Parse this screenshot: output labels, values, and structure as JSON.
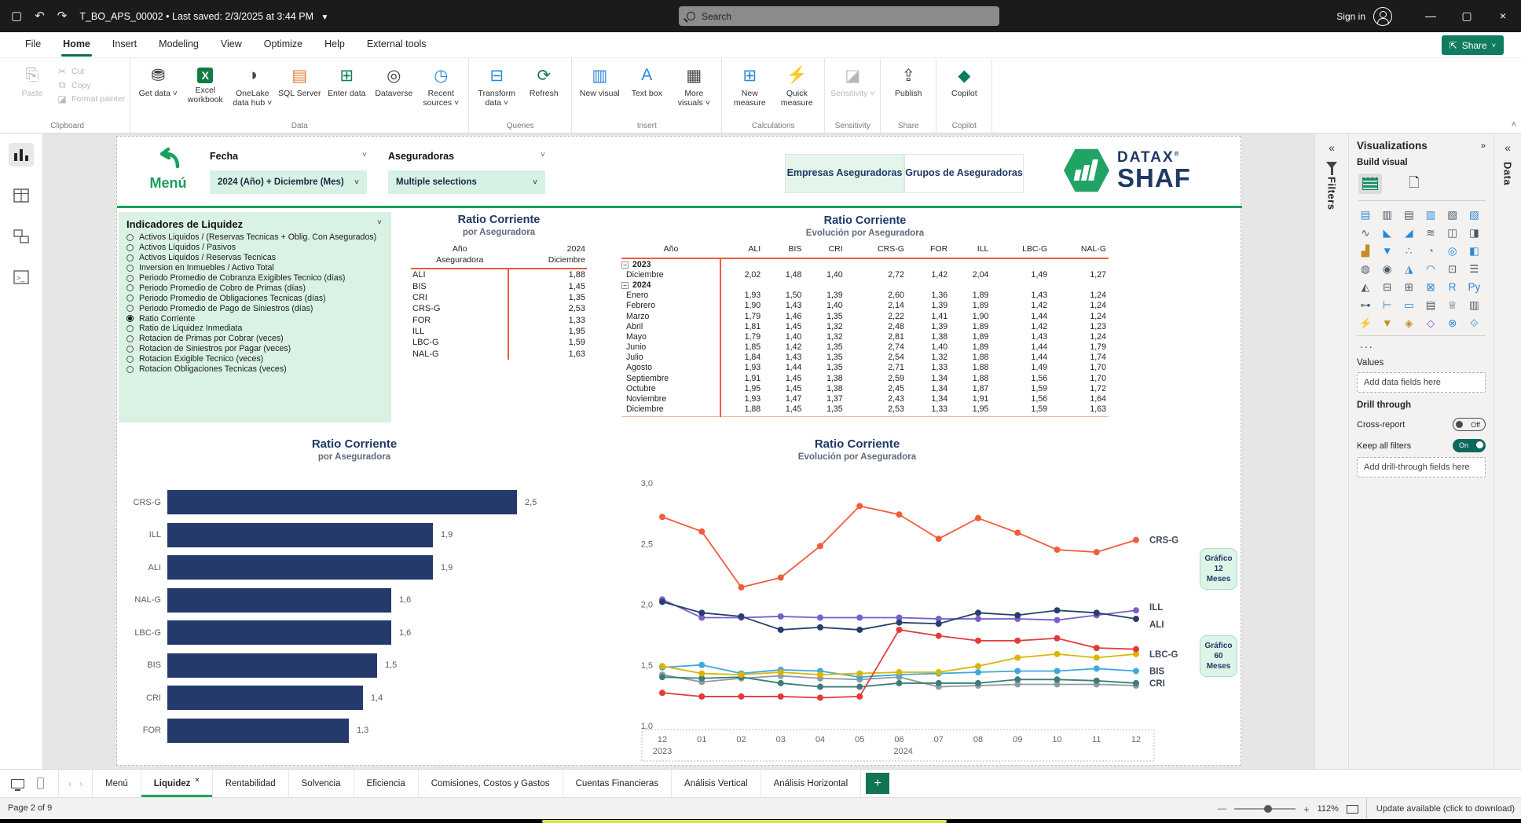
{
  "titlebar": {
    "filename": "T_BO_APS_00002",
    "saved": "Last saved: 2/3/2025 at 3:44 PM",
    "search_placeholder": "Search",
    "sign_in": "Sign in"
  },
  "menubar": {
    "items": [
      "File",
      "Home",
      "Insert",
      "Modeling",
      "View",
      "Optimize",
      "Help",
      "External tools"
    ],
    "active": "Home",
    "share_label": "Share"
  },
  "ribbon": {
    "groups": [
      {
        "label": "Clipboard",
        "type": "clipboard",
        "paste": "Paste",
        "small_items": [
          "Cut",
          "Copy",
          "Format painter"
        ]
      },
      {
        "label": "Data",
        "items": [
          {
            "label": "Get data",
            "caret": true,
            "icon": "database-icon",
            "glyph": "⛃",
            "cls": ""
          },
          {
            "label": "Excel workbook",
            "icon": "excel-icon",
            "glyph": "X",
            "cls": "green-x"
          },
          {
            "label": "OneLake data hub",
            "caret": true,
            "icon": "onelake-icon",
            "glyph": "◑",
            "cls": ""
          },
          {
            "label": "SQL Server",
            "icon": "sql-server-icon",
            "glyph": "▤",
            "cls": "orange"
          },
          {
            "label": "Enter data",
            "icon": "enter-data-icon",
            "glyph": "⊞",
            "cls": "teal"
          },
          {
            "label": "Dataverse",
            "icon": "dataverse-icon",
            "glyph": "◎",
            "cls": ""
          },
          {
            "label": "Recent sources",
            "caret": true,
            "icon": "recent-sources-icon",
            "glyph": "◷",
            "cls": "blue"
          }
        ]
      },
      {
        "label": "Queries",
        "items": [
          {
            "label": "Transform data",
            "caret": true,
            "icon": "transform-data-icon",
            "glyph": "⊟",
            "cls": "blue"
          },
          {
            "label": "Refresh",
            "icon": "refresh-icon",
            "glyph": "⟳",
            "cls": "teal"
          }
        ]
      },
      {
        "label": "Insert",
        "items": [
          {
            "label": "New visual",
            "icon": "new-visual-icon",
            "glyph": "▥",
            "cls": "blue"
          },
          {
            "label": "Text box",
            "icon": "text-box-icon",
            "glyph": "A",
            "cls": "blue"
          },
          {
            "label": "More visuals",
            "caret": true,
            "icon": "more-visuals-icon",
            "glyph": "▦",
            "cls": ""
          }
        ]
      },
      {
        "label": "Calculations",
        "items": [
          {
            "label": "New measure",
            "icon": "new-measure-icon",
            "glyph": "⊞",
            "cls": "blue"
          },
          {
            "label": "Quick measure",
            "icon": "quick-measure-icon",
            "glyph": "⚡",
            "cls": "orange"
          }
        ]
      },
      {
        "label": "Sensitivity",
        "items": [
          {
            "label": "Sensitivity",
            "caret": true,
            "icon": "sensitivity-icon",
            "glyph": "◪",
            "cls": "",
            "disabled": true
          }
        ]
      },
      {
        "label": "Share",
        "items": [
          {
            "label": "Publish",
            "icon": "publish-icon",
            "glyph": "⇪",
            "cls": ""
          }
        ]
      },
      {
        "label": "Copilot",
        "items": [
          {
            "label": "Copilot",
            "icon": "copilot-icon",
            "glyph": "◆",
            "cls": "teal"
          }
        ]
      }
    ],
    "collapse_icon": "˄"
  },
  "report": {
    "menu_label": "Menú",
    "fecha": {
      "label": "Fecha",
      "value": "2024 (Año) + Diciembre (Mes)"
    },
    "aseguradoras": {
      "label": "Aseguradoras",
      "value": "Multiple selections"
    },
    "toggle_buttons": [
      {
        "label": "Empresas Aseguradoras",
        "active": true
      },
      {
        "label": "Grupos de Aseguradoras",
        "active": false
      }
    ],
    "logo": {
      "brand": "DATAX",
      "reg": "®",
      "product": "SHAF"
    },
    "indicator_list": {
      "title": "Indicadores de Liquidez",
      "selected_index": 8,
      "items": [
        "Activos Liquidos / (Reservas Tecnicas + Oblig. Con Asegurados)",
        "Activos Líquidos / Pasivos",
        "Activos Liquidos / Reservas Tecnicas",
        "Inversion en Inmuebles / Activo Total",
        "Periodo Promedio de Cobranza Exigibles Tecnico (días)",
        "Periodo Promedio de Cobro de Primas (días)",
        "Periodo Promedio de Obligaciones Tecnicas (días)",
        "Periodo Promedio de Pago de Siniestros (días)",
        "Ratio Corriente",
        "Ratio de Liquidez Inmediata",
        "Rotacion de Primas por Cobrar (veces)",
        "Rotacion de Siniestros por Pagar (veces)",
        "Rotacion Exigible Tecnico (veces)",
        "Rotacion Obligaciones Tecnicas (veces)"
      ]
    },
    "table_por_aseguradora": {
      "title": "Ratio Corriente",
      "subtitle": "por Aseguradora",
      "header": {
        "col1_line1": "Año",
        "col1_line2": "Aseguradora",
        "col2_line1": "2024",
        "col2_line2": "Diciembre"
      },
      "rows": [
        [
          "ALI",
          "1,88"
        ],
        [
          "BIS",
          "1,45"
        ],
        [
          "CRI",
          "1,35"
        ],
        [
          "CRS-G",
          "2,53"
        ],
        [
          "FOR",
          "1,33"
        ],
        [
          "ILL",
          "1,95"
        ],
        [
          "LBC-G",
          "1,59"
        ],
        [
          "NAL-G",
          "1,63"
        ]
      ]
    },
    "matrix": {
      "title": "Ratio Corriente",
      "subtitle": "Evolución por Aseguradora",
      "columns": [
        "Año",
        "ALI",
        "BIS",
        "CRI",
        "CRS-G",
        "FOR",
        "ILL",
        "LBC-G",
        "NAL-G"
      ],
      "rows": [
        {
          "label": "2023",
          "year": true
        },
        {
          "label": "Diciembre",
          "values": [
            "2,02",
            "1,48",
            "1,40",
            "2,72",
            "1,42",
            "2,04",
            "1,49",
            "1,27"
          ]
        },
        {
          "label": "2024",
          "year": true
        },
        {
          "label": "Enero",
          "values": [
            "1,93",
            "1,50",
            "1,39",
            "2,60",
            "1,36",
            "1,89",
            "1,43",
            "1,24"
          ]
        },
        {
          "label": "Febrero",
          "values": [
            "1,90",
            "1,43",
            "1,40",
            "2,14",
            "1,39",
            "1,89",
            "1,42",
            "1,24"
          ]
        },
        {
          "label": "Marzo",
          "values": [
            "1,79",
            "1,46",
            "1,35",
            "2,22",
            "1,41",
            "1,90",
            "1,44",
            "1,24"
          ]
        },
        {
          "label": "Abril",
          "values": [
            "1,81",
            "1,45",
            "1,32",
            "2,48",
            "1,39",
            "1,89",
            "1,42",
            "1,23"
          ]
        },
        {
          "label": "Mayo",
          "values": [
            "1,79",
            "1,40",
            "1,32",
            "2,81",
            "1,38",
            "1,89",
            "1,43",
            "1,24"
          ]
        },
        {
          "label": "Junio",
          "values": [
            "1,85",
            "1,42",
            "1,35",
            "2,74",
            "1,40",
            "1,89",
            "1,44",
            "1,79"
          ]
        },
        {
          "label": "Julio",
          "values": [
            "1,84",
            "1,43",
            "1,35",
            "2,54",
            "1,32",
            "1,88",
            "1,44",
            "1,74"
          ]
        },
        {
          "label": "Agosto",
          "values": [
            "1,93",
            "1,44",
            "1,35",
            "2,71",
            "1,33",
            "1,88",
            "1,49",
            "1,70"
          ]
        },
        {
          "label": "Septiembre",
          "values": [
            "1,91",
            "1,45",
            "1,38",
            "2,59",
            "1,34",
            "1,88",
            "1,56",
            "1,70"
          ]
        },
        {
          "label": "Octubre",
          "values": [
            "1,95",
            "1,45",
            "1,38",
            "2,45",
            "1,34",
            "1,87",
            "1,59",
            "1,72"
          ]
        },
        {
          "label": "Noviembre",
          "values": [
            "1,93",
            "1,47",
            "1,37",
            "2,43",
            "1,34",
            "1,91",
            "1,56",
            "1,64"
          ]
        },
        {
          "label": "Diciembre",
          "values": [
            "1,88",
            "1,45",
            "1,35",
            "2,53",
            "1,33",
            "1,95",
            "1,59",
            "1,63"
          ]
        }
      ]
    },
    "grafico_buttons": [
      {
        "lines": [
          "Gráfico",
          "12",
          "Meses"
        ]
      },
      {
        "lines": [
          "Gráfico",
          "60",
          "Meses"
        ]
      }
    ]
  },
  "chart_data": [
    {
      "type": "bar",
      "orientation": "horizontal",
      "title": "Ratio Corriente",
      "subtitle": "por Aseguradora",
      "categories": [
        "CRS-G",
        "ILL",
        "ALI",
        "NAL-G",
        "LBC-G",
        "BIS",
        "CRI",
        "FOR"
      ],
      "values": [
        2.5,
        1.9,
        1.9,
        1.6,
        1.6,
        1.5,
        1.4,
        1.3
      ],
      "value_labels": [
        "2,5",
        "1,9",
        "1,9",
        "1,6",
        "1,6",
        "1,5",
        "1,4",
        "1,3"
      ],
      "bar_color": "#243a6b",
      "xlim": [
        0,
        2.7
      ],
      "grid": false
    },
    {
      "type": "line",
      "title": "Ratio Corriente",
      "subtitle": "Evolución por Aseguradora",
      "x_labels": [
        "12",
        "01",
        "02",
        "03",
        "04",
        "05",
        "06",
        "07",
        "08",
        "09",
        "10",
        "11",
        "12"
      ],
      "x_year_start": "2023",
      "x_year_mid": "2024",
      "ylim": [
        1.0,
        3.0
      ],
      "y_tick_labels": [
        "3,0",
        "2,5",
        "2,0",
        "1,5",
        "1,0"
      ],
      "grid": false,
      "legend_position": "right-end-labels",
      "series": [
        {
          "name": "FOR",
          "color": "#8e9ca3",
          "label_visible": false,
          "values": [
            1.42,
            1.36,
            1.39,
            1.41,
            1.39,
            1.38,
            1.4,
            1.32,
            1.33,
            1.34,
            1.34,
            1.34,
            1.33
          ]
        },
        {
          "name": "CRI",
          "color": "#3c7e76",
          "label_visible": true,
          "values": [
            1.4,
            1.39,
            1.4,
            1.35,
            1.32,
            1.32,
            1.35,
            1.35,
            1.35,
            1.38,
            1.38,
            1.37,
            1.35
          ]
        },
        {
          "name": "BIS",
          "color": "#3fa8dc",
          "label_visible": true,
          "values": [
            1.48,
            1.5,
            1.43,
            1.46,
            1.45,
            1.4,
            1.42,
            1.43,
            1.44,
            1.45,
            1.45,
            1.47,
            1.45
          ]
        },
        {
          "name": "LBC-G",
          "color": "#d9b50a",
          "label_visible": true,
          "values": [
            1.49,
            1.43,
            1.42,
            1.44,
            1.42,
            1.43,
            1.44,
            1.44,
            1.49,
            1.56,
            1.59,
            1.56,
            1.59
          ]
        },
        {
          "name": "NAL-G",
          "color": "#e23c39",
          "label_visible": false,
          "values": [
            1.27,
            1.24,
            1.24,
            1.24,
            1.23,
            1.24,
            1.79,
            1.74,
            1.7,
            1.7,
            1.72,
            1.64,
            1.63
          ]
        },
        {
          "name": "ILL",
          "color": "#7a5fcc",
          "label_visible": true,
          "values": [
            2.04,
            1.89,
            1.89,
            1.9,
            1.89,
            1.89,
            1.89,
            1.88,
            1.88,
            1.88,
            1.87,
            1.91,
            1.95
          ]
        },
        {
          "name": "ALI",
          "color": "#263f6a",
          "label_visible": true,
          "values": [
            2.02,
            1.93,
            1.9,
            1.79,
            1.81,
            1.79,
            1.85,
            1.84,
            1.93,
            1.91,
            1.95,
            1.93,
            1.88
          ]
        },
        {
          "name": "CRS-G",
          "color": "#f25c3b",
          "label_visible": true,
          "values": [
            2.72,
            2.6,
            2.14,
            2.22,
            2.48,
            2.81,
            2.74,
            2.54,
            2.71,
            2.59,
            2.45,
            2.43,
            2.53
          ]
        }
      ]
    }
  ],
  "panels": {
    "filters_collapsed": "Filters",
    "data_collapsed": "Data",
    "visualizations": {
      "title": "Visualizations",
      "build_label": "Build visual",
      "more": "...",
      "values_label": "Values",
      "values_placeholder": "Add data fields here",
      "drill_label": "Drill through",
      "cross_report": "Cross-report",
      "cross_report_state": "Off",
      "keep_filters": "Keep all filters",
      "keep_filters_state": "On",
      "drill_placeholder": "Add drill-through fields here",
      "icons": [
        {
          "name": "stacked-bar-chart-icon",
          "glyph": "▤",
          "cls": "blue"
        },
        {
          "name": "stacked-column-chart-icon",
          "glyph": "▥",
          "cls": ""
        },
        {
          "name": "clustered-bar-chart-icon",
          "glyph": "▤",
          "cls": ""
        },
        {
          "name": "clustered-column-chart-icon",
          "glyph": "▥",
          "cls": "blue"
        },
        {
          "name": "100-stacked-bar-chart-icon",
          "glyph": "▧",
          "cls": ""
        },
        {
          "name": "100-stacked-column-chart-icon",
          "glyph": "▨",
          "cls": "blue"
        },
        {
          "name": "line-chart-icon",
          "glyph": "∿",
          "cls": ""
        },
        {
          "name": "area-chart-icon",
          "glyph": "◣",
          "cls": "blue"
        },
        {
          "name": "stacked-area-chart-icon",
          "glyph": "◢",
          "cls": "blue"
        },
        {
          "name": "ribbon-chart-icon",
          "glyph": "≋",
          "cls": ""
        },
        {
          "name": "line-stacked-column-combo-icon",
          "glyph": "◫",
          "cls": ""
        },
        {
          "name": "line-clustered-column-combo-icon",
          "glyph": "◨",
          "cls": ""
        },
        {
          "name": "waterfall-chart-icon",
          "glyph": "▟",
          "cls": "gold"
        },
        {
          "name": "funnel-chart-icon",
          "glyph": "▼",
          "cls": "blue"
        },
        {
          "name": "scatter-chart-icon",
          "glyph": "∴",
          "cls": "blue"
        },
        {
          "name": "pie-chart-icon",
          "glyph": "◔",
          "cls": "blue"
        },
        {
          "name": "donut-chart-icon",
          "glyph": "◎",
          "cls": "blue"
        },
        {
          "name": "treemap-icon",
          "glyph": "◧",
          "cls": "blue"
        },
        {
          "name": "map-icon",
          "glyph": "◍",
          "cls": ""
        },
        {
          "name": "filled-map-icon",
          "glyph": "◉",
          "cls": ""
        },
        {
          "name": "azure-map-icon",
          "glyph": "◮",
          "cls": "blue"
        },
        {
          "name": "gauge-icon",
          "glyph": "◠",
          "cls": "blue"
        },
        {
          "name": "card-icon",
          "glyph": "⊡",
          "cls": ""
        },
        {
          "name": "multi-row-card-icon",
          "glyph": "☰",
          "cls": ""
        },
        {
          "name": "kpi-icon",
          "glyph": "◭",
          "cls": ""
        },
        {
          "name": "slicer-icon",
          "glyph": "⊟",
          "cls": ""
        },
        {
          "name": "table-icon",
          "glyph": "⊞",
          "cls": ""
        },
        {
          "name": "matrix-icon",
          "glyph": "⊠",
          "cls": "blue"
        },
        {
          "name": "r-script-icon",
          "glyph": "R",
          "cls": "blue"
        },
        {
          "name": "python-icon",
          "glyph": "Py",
          "cls": "blue"
        },
        {
          "name": "key-influencers-icon",
          "glyph": "⊶",
          "cls": ""
        },
        {
          "name": "decomposition-tree-icon",
          "glyph": "⊢",
          "cls": "blue"
        },
        {
          "name": "qa-icon",
          "glyph": "▭",
          "cls": "blue"
        },
        {
          "name": "paginated-report-icon",
          "glyph": "▤",
          "cls": ""
        },
        {
          "name": "metrics-icon",
          "glyph": "♕",
          "cls": ""
        },
        {
          "name": "report-icon",
          "glyph": "▥",
          "cls": ""
        },
        {
          "name": "quick-measure-123-icon",
          "glyph": "⚡",
          "cls": "gold"
        },
        {
          "name": "quick-filter-icon",
          "glyph": "▼",
          "cls": "gold"
        },
        {
          "name": "arcgis-map-icon",
          "glyph": "◈",
          "cls": "gold"
        },
        {
          "name": "power-automate-icon",
          "glyph": "◇",
          "cls": "purple"
        },
        {
          "name": "goals-icon",
          "glyph": "⊗",
          "cls": "blue"
        },
        {
          "name": "power-apps-icon",
          "glyph": "⟐",
          "cls": "blue"
        }
      ]
    }
  },
  "pagesbar": {
    "tabs": [
      "Menú",
      "Liquidez",
      "Rentabilidad",
      "Solvencia",
      "Eficiencia",
      "Comisiones, Costos y Gastos",
      "Cuentas Financieras",
      "Análisis Vertical",
      "Análisis Horizontal"
    ],
    "active": "Liquidez",
    "add_label": "+"
  },
  "statusbar": {
    "page_indicator": "Page 2 of 9",
    "zoom_level": "112%",
    "update_notice": "Update available (click to download)"
  }
}
